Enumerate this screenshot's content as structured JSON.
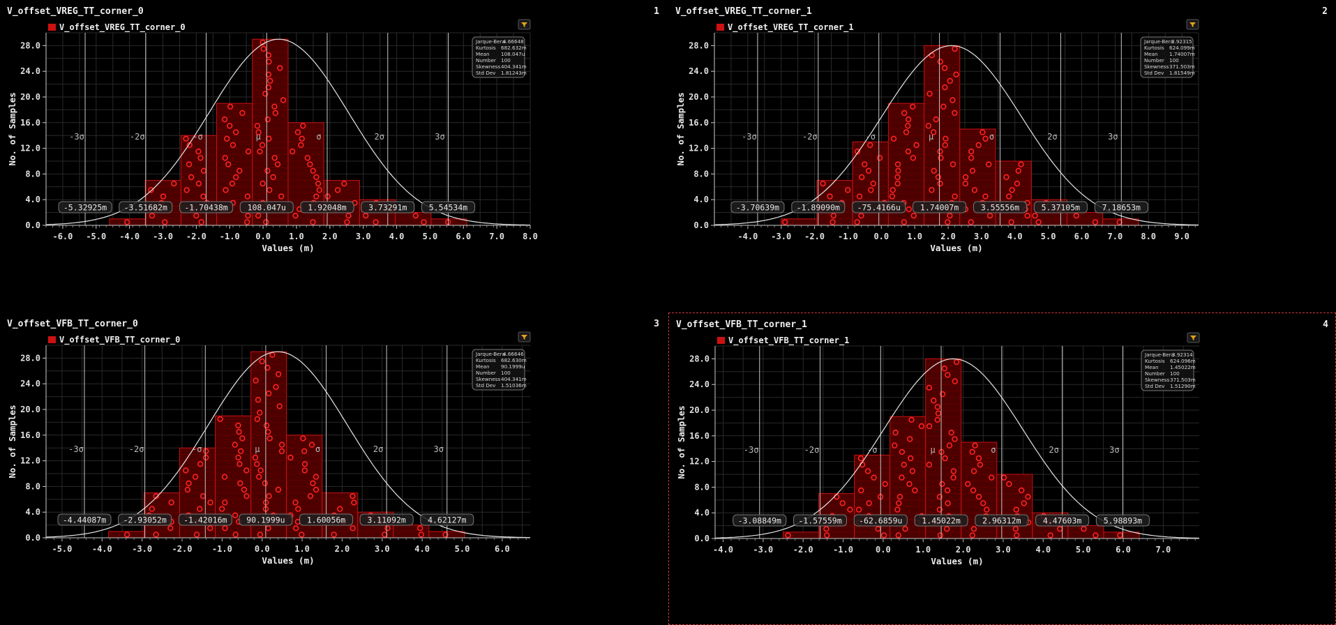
{
  "colors": {
    "background": "#000000",
    "grid": "#2a2a2a",
    "bar_fill": "#4d0000",
    "bar_stroke": "#cc1111",
    "point": "#ff2222",
    "curve": "#e6e6e6",
    "sigma_line": "#c8c8c8",
    "text": "#dddddd",
    "filter_icon": "#e8a020",
    "selection": "#d43a3a"
  },
  "common": {
    "ylabel": "No. of Samples",
    "xlabel": "Values (m)",
    "filter_icon": "filter-icon",
    "stats_labels": [
      "Jarque-Bera",
      "Kurtosis",
      "Mean",
      "Number",
      "Skewness",
      "Std Dev"
    ]
  },
  "panels": [
    {
      "title": "V_offset_VREG_TT_corner_0",
      "number": "1",
      "legend": "V_offset_VREG_TT_corner_0",
      "selected": false,
      "stats": [
        "4.66648",
        "682.632m",
        "108.047u",
        "100",
        "404.341m",
        "1.81243m"
      ],
      "chart_data": {
        "type": "bar",
        "xlim": [
          -6.5,
          8.0
        ],
        "ylim": [
          0,
          30
        ],
        "xticks": [
          -6.0,
          -5.0,
          -4.0,
          -3.0,
          -2.0,
          -1.0,
          0.0,
          1.0,
          2.0,
          3.0,
          4.0,
          5.0,
          6.0,
          7.0,
          8.0
        ],
        "xtick_labels": [
          "-6.0",
          "-5.0",
          "-4.0",
          "-3.0",
          "-2.0",
          "-1.0",
          "0.0",
          "1.0",
          "2.0",
          "3.0",
          "4.0",
          "5.0",
          "6.0",
          "7.0",
          "8.0"
        ],
        "yticks": [
          0,
          4,
          8,
          12,
          16,
          20,
          24,
          28
        ],
        "ytick_labels": [
          "0.0",
          "4.0",
          "8.0",
          "12.0",
          "16.0",
          "20.0",
          "24.0",
          "28.0"
        ],
        "bin_edges": [
          -4.6,
          -3.53,
          -2.46,
          -1.39,
          -0.32,
          0.75,
          1.82,
          2.89,
          3.96,
          5.03,
          6.1
        ],
        "counts": [
          1,
          7,
          14,
          19,
          29,
          16,
          7,
          4,
          2,
          1
        ],
        "mean": 0.108,
        "std": 1.81243,
        "sigma_names": [
          "-3σ",
          "-2σ",
          "-σ",
          "μ",
          "σ",
          "2σ",
          "3σ"
        ],
        "sigma_values": [
          "-5.32925m",
          "-3.51682m",
          "-1.70438m",
          "108.047u",
          "1.92048m",
          "3.73291m",
          "5.54534m"
        ],
        "sigma_positions": [
          -5.329,
          -3.517,
          -1.704,
          0.108,
          1.92,
          3.733,
          5.545
        ]
      }
    },
    {
      "title": "V_offset_VREG_TT_corner_1",
      "number": "2",
      "legend": "V_offset_VREG_TT_corner_1",
      "selected": false,
      "stats": [
        "3.92315",
        "624.099m",
        "1.74007m",
        "100",
        "371.503m",
        "1.81549m"
      ],
      "chart_data": {
        "type": "bar",
        "xlim": [
          -5.0,
          9.5
        ],
        "ylim": [
          0,
          30
        ],
        "xticks": [
          -4.0,
          -3.0,
          -2.0,
          -1.0,
          0.0,
          1.0,
          2.0,
          3.0,
          4.0,
          5.0,
          6.0,
          7.0,
          8.0,
          9.0
        ],
        "xtick_labels": [
          "-4.0",
          "-3.0",
          "-2.0",
          "-1.0",
          "0.0",
          "1.0",
          "2.0",
          "3.0",
          "4.0",
          "5.0",
          "6.0",
          "7.0",
          "8.0",
          "9.0"
        ],
        "yticks": [
          0,
          4,
          8,
          12,
          16,
          20,
          24,
          28
        ],
        "ytick_labels": [
          "0.0",
          "4.0",
          "8.0",
          "12.0",
          "16.0",
          "20.0",
          "24.0",
          "28.0"
        ],
        "bin_edges": [
          -3.0,
          -1.93,
          -0.86,
          0.21,
          1.28,
          2.35,
          3.42,
          4.49,
          5.56,
          6.63,
          7.7
        ],
        "counts": [
          1,
          7,
          13,
          19,
          28,
          15,
          10,
          4,
          2,
          1
        ],
        "mean": 1.74,
        "std": 1.81549,
        "sigma_names": [
          "-3σ",
          "-2σ",
          "-σ",
          "μ",
          "σ",
          "2σ",
          "3σ"
        ],
        "sigma_values": [
          "-3.70639m",
          "-1.89090m",
          "-75.4166u",
          "1.74007m",
          "3.55556m",
          "5.37105m",
          "7.18653m"
        ],
        "sigma_positions": [
          -3.706,
          -1.891,
          -0.075,
          1.74,
          3.556,
          5.371,
          7.187
        ]
      }
    },
    {
      "title": "V_offset_VFB_TT_corner_0",
      "number": "3",
      "legend": "V_offset_VFB_TT_corner_0",
      "selected": false,
      "stats": [
        "4.66646",
        "682.630m",
        "90.1999u",
        "100",
        "404.341m",
        "1.51036m"
      ],
      "chart_data": {
        "type": "bar",
        "xlim": [
          -5.4,
          6.7
        ],
        "ylim": [
          0,
          30
        ],
        "xticks": [
          -5.0,
          -4.0,
          -3.0,
          -2.0,
          -1.0,
          0.0,
          1.0,
          2.0,
          3.0,
          4.0,
          5.0,
          6.0
        ],
        "xtick_labels": [
          "-5.0",
          "-4.0",
          "-3.0",
          "-2.0",
          "-1.0",
          "0.0",
          "1.0",
          "2.0",
          "3.0",
          "4.0",
          "5.0",
          "6.0"
        ],
        "yticks": [
          0,
          4,
          8,
          12,
          16,
          20,
          24,
          28
        ],
        "ytick_labels": [
          "0.0",
          "4.0",
          "8.0",
          "12.0",
          "16.0",
          "20.0",
          "24.0",
          "28.0"
        ],
        "bin_edges": [
          -3.84,
          -2.95,
          -2.06,
          -1.17,
          -0.28,
          0.61,
          1.5,
          2.39,
          3.28,
          4.17,
          5.06
        ],
        "counts": [
          1,
          7,
          14,
          19,
          29,
          16,
          7,
          4,
          2,
          1
        ],
        "mean": 0.09,
        "std": 1.51036,
        "sigma_names": [
          "-3σ",
          "-2σ",
          "-σ",
          "μ",
          "σ",
          "2σ",
          "3σ"
        ],
        "sigma_values": [
          "-4.44087m",
          "-2.93052m",
          "-1.42016m",
          "90.1999u",
          "1.60056m",
          "3.11092m",
          "4.62127m"
        ],
        "sigma_positions": [
          -4.441,
          -2.931,
          -1.42,
          0.09,
          1.601,
          3.111,
          4.621
        ]
      }
    },
    {
      "title": "V_offset_VFB_TT_corner_1",
      "number": "4",
      "legend": "V_offset_VFB_TT_corner_1",
      "selected": true,
      "stats": [
        "3.92314",
        "624.096m",
        "1.45022m",
        "100",
        "371.503m",
        "1.51290m"
      ],
      "chart_data": {
        "type": "bar",
        "xlim": [
          -4.2,
          7.9
        ],
        "ylim": [
          0,
          30
        ],
        "xticks": [
          -4.0,
          -3.0,
          -2.0,
          -1.0,
          0.0,
          1.0,
          2.0,
          3.0,
          4.0,
          5.0,
          6.0,
          7.0
        ],
        "xtick_labels": [
          "-4.0",
          "-3.0",
          "-2.0",
          "-1.0",
          "0.0",
          "1.0",
          "2.0",
          "3.0",
          "4.0",
          "5.0",
          "6.0",
          "7.0"
        ],
        "yticks": [
          0,
          4,
          8,
          12,
          16,
          20,
          24,
          28
        ],
        "ytick_labels": [
          "0.0",
          "4.0",
          "8.0",
          "12.0",
          "16.0",
          "20.0",
          "24.0",
          "28.0"
        ],
        "bin_edges": [
          -2.5,
          -1.61,
          -0.72,
          0.17,
          1.06,
          1.95,
          2.84,
          3.73,
          4.62,
          5.51,
          6.4
        ],
        "counts": [
          1,
          7,
          13,
          19,
          28,
          15,
          10,
          4,
          2,
          1
        ],
        "mean": 1.45,
        "std": 1.5129,
        "sigma_names": [
          "-3σ",
          "-2σ",
          "-σ",
          "μ",
          "σ",
          "2σ",
          "3σ"
        ],
        "sigma_values": [
          "-3.08849m",
          "-1.57559m",
          "-62.6859u",
          "1.45022m",
          "2.96312m",
          "4.47603m",
          "5.98893m"
        ],
        "sigma_positions": [
          -3.088,
          -1.576,
          -0.063,
          1.45,
          2.963,
          4.476,
          5.989
        ]
      }
    }
  ]
}
